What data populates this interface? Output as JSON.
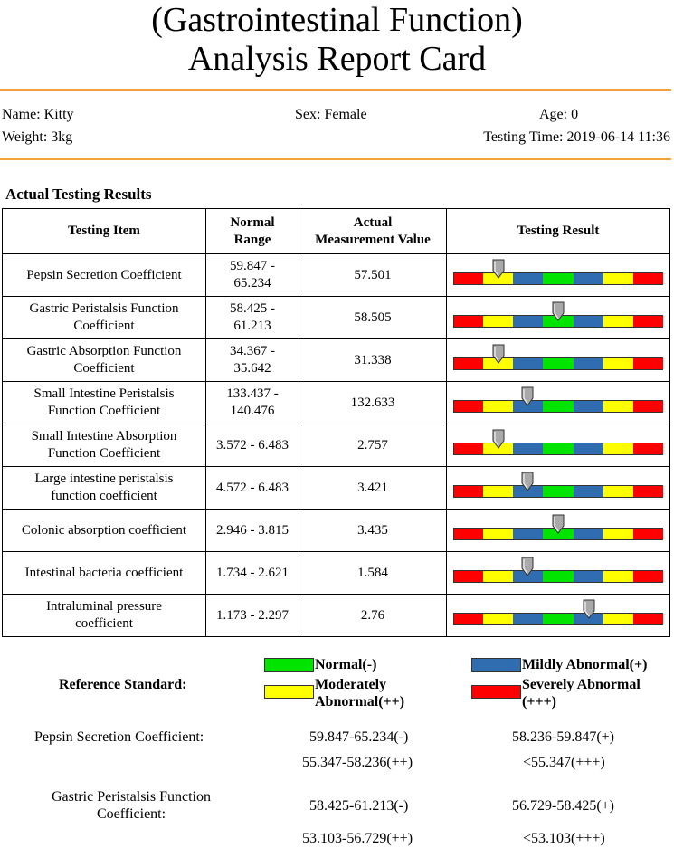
{
  "header": {
    "title_line1": "(Gastrointestinal Function)",
    "title_line2": "Analysis Report Card"
  },
  "patient": {
    "name": "Name: Kitty",
    "sex": "Sex: Female",
    "age": "Age: 0",
    "weight": "Weight: 3kg",
    "testing_time": "Testing Time: 2019-06-14 11:36"
  },
  "results_section": {
    "title": "Actual Testing Results",
    "columns": {
      "item": "Testing Item",
      "range_l1": "Normal",
      "range_l2": "Range",
      "value_l1": "Actual",
      "value_l2": "Measurement Value",
      "result": "Testing Result"
    },
    "rows": [
      {
        "item_l1": "Pepsin Secretion Coefficient",
        "item_l2": "",
        "range_l1": "59.847 -",
        "range_l2": "65.234",
        "value": "57.501",
        "pointer": 0.215
      },
      {
        "item_l1": "Gastric Peristalsis Function",
        "item_l2": "Coefficient",
        "range_l1": "58.425 -",
        "range_l2": "61.213",
        "value": "58.505",
        "pointer": 0.5
      },
      {
        "item_l1": "Gastric Absorption Function",
        "item_l2": "Coefficient",
        "range_l1": "34.367 -",
        "range_l2": "35.642",
        "value": "31.338",
        "pointer": 0.215
      },
      {
        "item_l1": "Small Intestine Peristalsis",
        "item_l2": "Function Coefficient",
        "range_l1": "133.437 -",
        "range_l2": "140.476",
        "value": "132.633",
        "pointer": 0.355
      },
      {
        "item_l1": "Small Intestine Absorption",
        "item_l2": "Function Coefficient",
        "range_l1": "3.572 - 6.483",
        "range_l2": "",
        "value": "2.757",
        "pointer": 0.215
      },
      {
        "item_l1": "Large intestine peristalsis",
        "item_l2": "function coefficient",
        "range_l1": "4.572 - 6.483",
        "range_l2": "",
        "value": "3.421",
        "pointer": 0.355
      },
      {
        "item_l1": "Colonic absorption coefficient",
        "item_l2": "",
        "range_l1": "2.946 - 3.815",
        "range_l2": "",
        "value": "3.435",
        "pointer": 0.5
      },
      {
        "item_l1": "Intestinal bacteria coefficient",
        "item_l2": "",
        "range_l1": "1.734 - 2.621",
        "range_l2": "",
        "value": "1.584",
        "pointer": 0.355
      },
      {
        "item_l1": "Intraluminal pressure",
        "item_l2": "coefficient",
        "range_l1": "1.173 - 2.297",
        "range_l2": "",
        "value": "2.76",
        "pointer": 0.645
      }
    ],
    "scale_colors": [
      "#ff0000",
      "#ffff00",
      "#2f6db0",
      "#00e400",
      "#2f6db0",
      "#ffff00",
      "#ff0000"
    ]
  },
  "reference": {
    "title": "Reference Standard:",
    "legend": {
      "normal": {
        "label": "Normal(-)",
        "color": "#00e400"
      },
      "mild": {
        "label": "Mildly Abnormal(+)",
        "color": "#2f6db0"
      },
      "moderate": {
        "label_l1": "Moderately",
        "label_l2": "Abnormal(++)",
        "color": "#ffff00"
      },
      "severe": {
        "label_l1": "Severely Abnormal",
        "label_l2": "(+++)",
        "color": "#ff0000"
      }
    },
    "entries": [
      {
        "name": "Pepsin Secretion Coefficient:",
        "name_l2": "",
        "normal": "59.847-65.234(-)",
        "mild": "58.236-59.847(+)",
        "moderate": "55.347-58.236(++)",
        "severe": "<55.347(+++)"
      },
      {
        "name": "Gastric Peristalsis Function",
        "name_l2": "Coefficient:",
        "normal": "58.425-61.213(-)",
        "mild": "56.729-58.425(+)",
        "moderate": "53.103-56.729(++)",
        "severe": "<53.103(+++)"
      }
    ]
  }
}
